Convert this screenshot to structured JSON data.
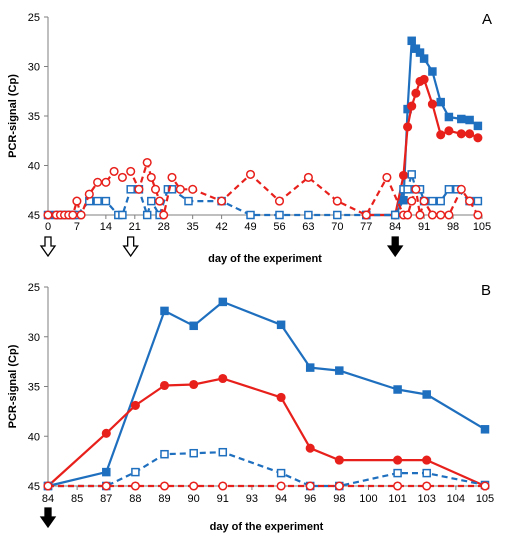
{
  "chart_data": [
    {
      "panel_label": "A",
      "type": "line",
      "xlabel": "day of the experiment",
      "ylabel": "PCR-signal  (Cp)",
      "y_inverted": true,
      "ylim": [
        45,
        25
      ],
      "xlim": [
        0,
        105
      ],
      "y_ticks": [
        "25",
        "30",
        "35",
        "40",
        "45"
      ],
      "x_ticks": [
        "0",
        "7",
        "14",
        "21",
        "28",
        "35",
        "42",
        "49",
        "56",
        "63",
        "70",
        "77",
        "84",
        "91",
        "98",
        "105"
      ],
      "open_arrows_at": [
        0,
        20
      ],
      "filled_arrows_at": [
        84
      ],
      "series": [
        {
          "color": "#1f6fbf",
          "marker": "square-filled",
          "line": "solid",
          "x": [
            77,
            84,
            86,
            87,
            88,
            89,
            90,
            91,
            93,
            95,
            97,
            100,
            102,
            104
          ],
          "y": [
            45,
            45,
            43.5,
            34.3,
            27.4,
            28.2,
            28.6,
            29.2,
            30.5,
            33.6,
            35.1,
            35.3,
            35.4,
            36.0
          ]
        },
        {
          "color": "#e8201c",
          "marker": "circle-filled",
          "line": "solid",
          "x": [
            77,
            84,
            86,
            87,
            88,
            89,
            90,
            91,
            93,
            95,
            97,
            100,
            102,
            104
          ],
          "y": [
            45,
            45,
            41.0,
            36.1,
            34.0,
            32.7,
            31.5,
            31.3,
            33.8,
            36.9,
            36.5,
            36.8,
            36.8,
            37.2
          ]
        },
        {
          "color": "#1f6fbf",
          "marker": "square-open",
          "line": "dashed",
          "x": [
            0,
            2,
            3,
            4,
            5,
            6,
            7,
            10,
            12,
            14,
            17,
            18,
            20,
            22,
            24,
            25,
            27,
            29,
            30,
            34,
            42,
            49,
            56,
            63,
            70,
            77,
            84,
            86,
            87,
            88,
            89,
            90,
            91,
            93,
            95,
            97,
            99,
            102,
            104
          ],
          "y": [
            45,
            45,
            45,
            45,
            45,
            45,
            45,
            43.6,
            43.6,
            43.6,
            45,
            45,
            42.4,
            42.4,
            45,
            43.6,
            45,
            42.4,
            42.4,
            43.6,
            43.6,
            45,
            45,
            45,
            45,
            45,
            45,
            42.4,
            42.4,
            40.9,
            42.4,
            42.4,
            43.6,
            43.6,
            43.6,
            42.4,
            42.4,
            43.6,
            43.6
          ]
        },
        {
          "color": "#e8201c",
          "marker": "circle-open",
          "line": "dashed",
          "x": [
            0,
            2,
            3,
            4,
            5,
            6,
            7,
            8,
            10,
            12,
            14,
            16,
            18,
            20,
            22,
            24,
            25,
            26,
            27,
            28,
            30,
            32,
            35,
            42,
            49,
            56,
            63,
            70,
            77,
            82,
            86,
            87,
            88,
            89,
            90,
            91,
            93,
            95,
            97,
            100,
            102,
            104
          ],
          "y": [
            45,
            45,
            45,
            45,
            45,
            45,
            43.6,
            45,
            42.9,
            41.7,
            41.7,
            40.6,
            41.2,
            40.6,
            42.4,
            39.7,
            41.2,
            42.4,
            43.6,
            45,
            41.2,
            42.4,
            42.4,
            43.6,
            40.9,
            43.6,
            41.2,
            43.6,
            45,
            41.2,
            45,
            45,
            43.6,
            42.4,
            45,
            43.6,
            45,
            45,
            45,
            42.4,
            43.6,
            45
          ]
        }
      ]
    },
    {
      "panel_label": "B",
      "type": "line",
      "xlabel": "day of the experiment",
      "ylabel": "PCR-signal  (Cp)",
      "y_inverted": true,
      "ylim": [
        45,
        25
      ],
      "x_scale": "categorical-days",
      "y_ticks": [
        "25",
        "30",
        "35",
        "40",
        "45"
      ],
      "x_ticks": [
        "84",
        "85",
        "87",
        "88",
        "89",
        "90",
        "91",
        "93",
        "94",
        "96",
        "98",
        "100",
        "101",
        "103",
        "104",
        "105"
      ],
      "filled_arrows_at": [
        "84"
      ],
      "series": [
        {
          "color": "#1f6fbf",
          "marker": "square-filled",
          "line": "solid",
          "x": [
            "84",
            "87",
            "89",
            "90",
            "91",
            "94",
            "96",
            "98",
            "101",
            "103",
            "105"
          ],
          "y": [
            45,
            43.6,
            27.4,
            28.9,
            26.5,
            28.8,
            33.1,
            33.4,
            35.3,
            35.8,
            39.3
          ]
        },
        {
          "color": "#e8201c",
          "marker": "circle-filled",
          "line": "solid",
          "x": [
            "84",
            "87",
            "88",
            "89",
            "90",
            "91",
            "94",
            "96",
            "98",
            "101",
            "103",
            "105"
          ],
          "y": [
            45,
            39.7,
            36.9,
            34.9,
            34.8,
            34.2,
            36.1,
            41.2,
            42.4,
            42.4,
            42.4,
            45
          ]
        },
        {
          "color": "#1f6fbf",
          "marker": "square-open",
          "line": "dashed",
          "x": [
            "84",
            "87",
            "88",
            "89",
            "90",
            "91",
            "94",
            "96",
            "98",
            "101",
            "103",
            "105"
          ],
          "y": [
            45,
            45,
            43.6,
            41.8,
            41.7,
            41.6,
            43.7,
            45,
            45,
            43.7,
            43.7,
            44.9
          ]
        },
        {
          "color": "#e8201c",
          "marker": "circle-open",
          "line": "dashed",
          "x": [
            "84",
            "87",
            "88",
            "89",
            "90",
            "91",
            "94",
            "96",
            "98",
            "101",
            "103",
            "105"
          ],
          "y": [
            45,
            45,
            45,
            45,
            45,
            45,
            45,
            45,
            45,
            45,
            45,
            45
          ]
        }
      ]
    }
  ]
}
